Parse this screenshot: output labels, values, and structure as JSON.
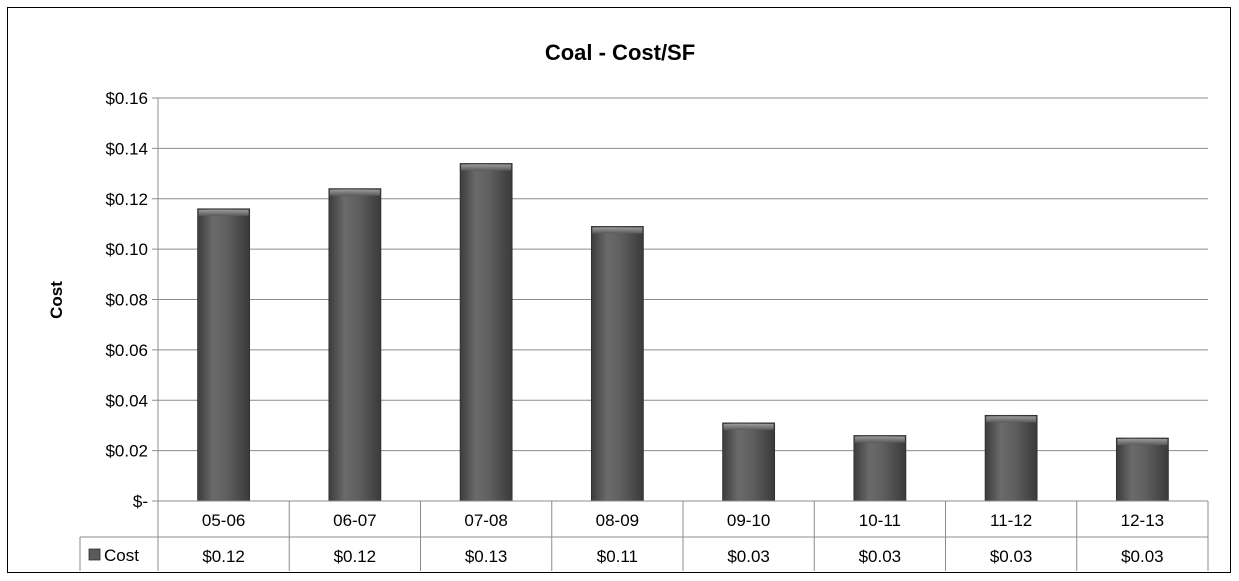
{
  "chart_data": {
    "type": "bar",
    "title": "Coal - Cost/SF",
    "ylabel": "Cost",
    "xlabel": "",
    "categories": [
      "05-06",
      "06-07",
      "07-08",
      "08-09",
      "09-10",
      "10-11",
      "11-12",
      "12-13"
    ],
    "series": [
      {
        "name": "Cost",
        "values": [
          0.116,
          0.124,
          0.134,
          0.109,
          0.031,
          0.026,
          0.034,
          0.025
        ],
        "table_labels": [
          "$0.12",
          "$0.12",
          "$0.13",
          "$0.11",
          "$0.03",
          "$0.03",
          "$0.03",
          "$0.03"
        ],
        "color": "#5a5a5a"
      }
    ],
    "ylim": [
      0,
      0.16
    ],
    "yticks": [
      0,
      0.02,
      0.04,
      0.06,
      0.08,
      0.1,
      0.12,
      0.14,
      0.16
    ],
    "ytick_labels": [
      "$-",
      "$0.02",
      "$0.04",
      "$0.06",
      "$0.08",
      "$0.10",
      "$0.12",
      "$0.14",
      "$0.16"
    ],
    "grid": true,
    "legend": "data-table"
  }
}
